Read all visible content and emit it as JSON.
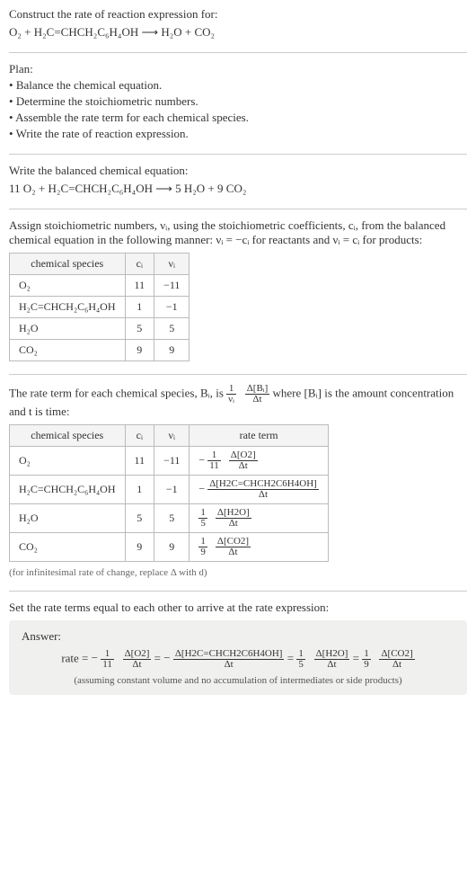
{
  "titleBlock": {
    "heading": "Construct the rate of reaction expression for:",
    "equation": "O₂ + H₂C=CHCH₂C₆H₄OH  ⟶  H₂O + CO₂"
  },
  "plan": {
    "heading": "Plan:",
    "items": [
      "Balance the chemical equation.",
      "Determine the stoichiometric numbers.",
      "Assemble the rate term for each chemical species.",
      "Write the rate of reaction expression."
    ]
  },
  "balanced": {
    "heading": "Write the balanced chemical equation:",
    "equation": "11 O₂ + H₂C=CHCH₂C₆H₄OH  ⟶  5 H₂O + 9 CO₂"
  },
  "stoich": {
    "intro_a": "Assign stoichiometric numbers, νᵢ, using the stoichiometric coefficients, cᵢ, from the balanced chemical equation in the following manner: νᵢ = −cᵢ for reactants and νᵢ = cᵢ for products:",
    "headers": [
      "chemical species",
      "cᵢ",
      "νᵢ"
    ],
    "rows": [
      {
        "species": "O₂",
        "c": "11",
        "v": "−11"
      },
      {
        "species": "H₂C=CHCH₂C₆H₄OH",
        "c": "1",
        "v": "−1"
      },
      {
        "species": "H₂O",
        "c": "5",
        "v": "5"
      },
      {
        "species": "CO₂",
        "c": "9",
        "v": "9"
      }
    ]
  },
  "rateTerm": {
    "intro_pre": "The rate term for each chemical species, Bᵢ, is ",
    "intro_post": " where [Bᵢ] is the amount concentration and t is time:",
    "frac1": {
      "num": "1",
      "den": "νᵢ"
    },
    "frac2": {
      "num": "Δ[Bᵢ]",
      "den": "Δt"
    },
    "headers": [
      "chemical species",
      "cᵢ",
      "νᵢ",
      "rate term"
    ],
    "rows": [
      {
        "species": "O₂",
        "c": "11",
        "v": "−11",
        "sign": "−",
        "coefNum": "1",
        "coefDen": "11",
        "deltaNum": "Δ[O2]",
        "deltaDen": "Δt"
      },
      {
        "species": "H₂C=CHCH₂C₆H₄OH",
        "c": "1",
        "v": "−1",
        "sign": "−",
        "coefNum": "",
        "coefDen": "",
        "deltaNum": "Δ[H2C=CHCH2C6H4OH]",
        "deltaDen": "Δt"
      },
      {
        "species": "H₂O",
        "c": "5",
        "v": "5",
        "sign": "",
        "coefNum": "1",
        "coefDen": "5",
        "deltaNum": "Δ[H2O]",
        "deltaDen": "Δt"
      },
      {
        "species": "CO₂",
        "c": "9",
        "v": "9",
        "sign": "",
        "coefNum": "1",
        "coefDen": "9",
        "deltaNum": "Δ[CO2]",
        "deltaDen": "Δt"
      }
    ],
    "note": "(for infinitesimal rate of change, replace Δ with d)"
  },
  "final": {
    "heading": "Set the rate terms equal to each other to arrive at the rate expression:",
    "answerLabel": "Answer:",
    "rateLabel": "rate = ",
    "terms": [
      {
        "sign": "−",
        "coefNum": "1",
        "coefDen": "11",
        "deltaNum": "Δ[O2]",
        "deltaDen": "Δt"
      },
      {
        "sign": "−",
        "coefNum": "",
        "coefDen": "",
        "deltaNum": "Δ[H2C=CHCH2C6H4OH]",
        "deltaDen": "Δt"
      },
      {
        "sign": "",
        "coefNum": "1",
        "coefDen": "5",
        "deltaNum": "Δ[H2O]",
        "deltaDen": "Δt"
      },
      {
        "sign": "",
        "coefNum": "1",
        "coefDen": "9",
        "deltaNum": "Δ[CO2]",
        "deltaDen": "Δt"
      }
    ],
    "eq": " = ",
    "note": "(assuming constant volume and no accumulation of intermediates or side products)"
  }
}
